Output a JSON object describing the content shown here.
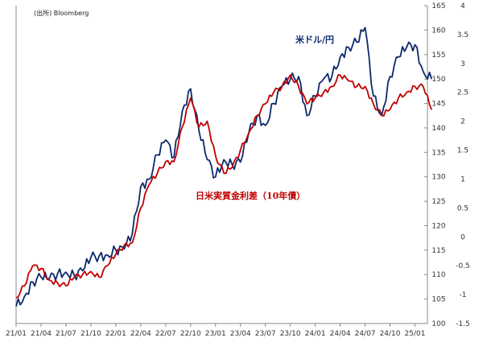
{
  "chart_data": {
    "type": "line",
    "title": "",
    "source_note": "(出所) Bloomberg",
    "x_tick_labels": [
      "21/01",
      "21/04",
      "21/07",
      "21/10",
      "22/01",
      "22/04",
      "22/07",
      "22/10",
      "23/01",
      "23/04",
      "23/07",
      "23/10",
      "24/01",
      "24/04",
      "24/07",
      "24/10",
      "25/01"
    ],
    "left_axis": {
      "ylim": [
        100,
        165
      ],
      "ticks": [
        100,
        105,
        110,
        115,
        120,
        125,
        130,
        135,
        140,
        145,
        150,
        155,
        160,
        165
      ]
    },
    "right_axis": {
      "ylim": [
        -1.5,
        4
      ],
      "ticks": [
        -1.5,
        -1,
        -0.5,
        0,
        0.5,
        1,
        1.5,
        2,
        2.5,
        3,
        3.5,
        4
      ]
    },
    "series": [
      {
        "name": "米ドル/円",
        "axis": "left",
        "color": "#0b2a6b",
        "x": [
          "21/01",
          "21/02",
          "21/03",
          "21/04",
          "21/05",
          "21/06",
          "21/07",
          "21/08",
          "21/09",
          "21/10",
          "21/11",
          "21/12",
          "22/01",
          "22/02",
          "22/03",
          "22/04",
          "22/05",
          "22/06",
          "22/07",
          "22/08",
          "22/09",
          "22/10",
          "22/11",
          "22/12",
          "23/01",
          "23/02",
          "23/03",
          "23/04",
          "23/05",
          "23/06",
          "23/07",
          "23/08",
          "23/09",
          "23/10",
          "23/11",
          "23/12",
          "24/01",
          "24/02",
          "24/03",
          "24/04",
          "24/05",
          "24/06",
          "24/07",
          "24/08",
          "24/09",
          "24/10",
          "24/11",
          "24/12",
          "25/01",
          "25/02",
          "25/03"
        ],
        "y": [
          103.5,
          105.5,
          108.5,
          109.5,
          109.2,
          110.2,
          110.5,
          109.8,
          110.8,
          113.5,
          113.8,
          114.0,
          115.0,
          115.2,
          118.5,
          128.0,
          129.5,
          134.5,
          137.5,
          134.0,
          143.5,
          148.0,
          139.5,
          133.5,
          130.0,
          133.5,
          132.5,
          133.0,
          139.0,
          142.5,
          140.5,
          145.0,
          148.5,
          150.0,
          150.5,
          142.5,
          146.5,
          150.0,
          150.5,
          154.5,
          156.5,
          157.5,
          160.5,
          146.5,
          142.5,
          150.5,
          154.5,
          156.5,
          157.0,
          151.5,
          150.0
        ]
      },
      {
        "name": "日米実質金利差（10年債）",
        "axis": "right",
        "color": "#c00000",
        "x": [
          "21/01",
          "21/02",
          "21/03",
          "21/04",
          "21/05",
          "21/06",
          "21/07",
          "21/08",
          "21/09",
          "21/10",
          "21/11",
          "21/12",
          "22/01",
          "22/02",
          "22/03",
          "22/04",
          "22/05",
          "22/06",
          "22/07",
          "22/08",
          "22/09",
          "22/10",
          "22/11",
          "22/12",
          "23/01",
          "23/02",
          "23/03",
          "23/04",
          "23/05",
          "23/06",
          "23/07",
          "23/08",
          "23/09",
          "23/10",
          "23/11",
          "23/12",
          "24/01",
          "24/02",
          "24/03",
          "24/04",
          "24/05",
          "24/06",
          "24/07",
          "24/08",
          "24/09",
          "24/10",
          "24/11",
          "24/12",
          "25/01",
          "25/02",
          "25/03"
        ],
        "y": [
          -1.05,
          -0.85,
          -0.5,
          -0.55,
          -0.75,
          -0.8,
          -0.85,
          -0.7,
          -0.65,
          -0.6,
          -0.7,
          -0.5,
          -0.3,
          -0.15,
          -0.1,
          0.5,
          0.9,
          1.1,
          1.3,
          1.3,
          1.9,
          2.4,
          1.9,
          2.0,
          1.4,
          1.1,
          1.2,
          1.5,
          1.8,
          2.1,
          2.3,
          2.5,
          2.6,
          2.8,
          2.6,
          2.3,
          2.4,
          2.5,
          2.6,
          2.8,
          2.7,
          2.6,
          2.6,
          2.3,
          2.1,
          2.2,
          2.4,
          2.5,
          2.6,
          2.6,
          2.2
        ]
      }
    ],
    "annotations": [
      {
        "text": "米ドル/円",
        "color": "#0b2a6b"
      },
      {
        "text": "日米実質金利差（10年債）",
        "color": "#c00000"
      }
    ],
    "grid": false,
    "legend": "none"
  }
}
